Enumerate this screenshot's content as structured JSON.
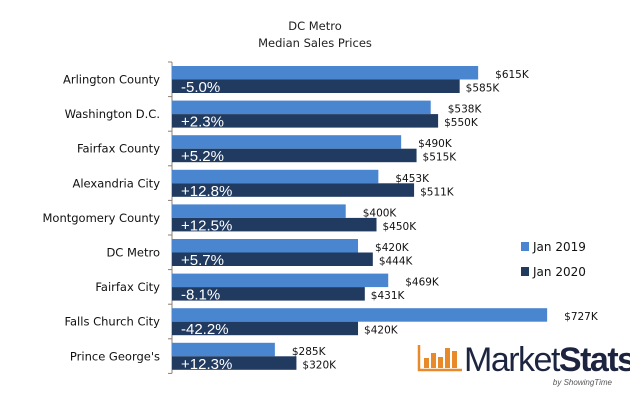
{
  "chart_data": {
    "type": "bar",
    "orientation": "horizontal",
    "title": "DC Metro",
    "subtitle": "Median Sales Prices",
    "xlabel": "",
    "ylabel": "",
    "grid": false,
    "xlim": [
      118,
      760
    ],
    "categories": [
      "Arlington County",
      "Washington D.C.",
      "Fairfax County",
      "Alexandria City",
      "Montgomery County",
      "DC Metro",
      "Fairfax City",
      "Falls Church City",
      "Prince George's"
    ],
    "series": [
      {
        "name": "Jan 2019",
        "color": "#4a86cf",
        "values": [
          615,
          538,
          490,
          453,
          400,
          420,
          469,
          727,
          285
        ],
        "labels": [
          "$615K",
          "$538K",
          "$490K",
          "$453K",
          "$400K",
          "$420K",
          "$469K",
          "$727K",
          "$285K"
        ]
      },
      {
        "name": "Jan 2020",
        "color": "#203a60",
        "values": [
          585,
          550,
          515,
          511,
          450,
          444,
          431,
          420,
          320
        ],
        "labels": [
          "$585K",
          "$550K",
          "$515K",
          "$511K",
          "$450K",
          "$444K",
          "$431K",
          "$420K",
          "$320K"
        ]
      }
    ],
    "annotations": [
      "-5.0%",
      "+2.3%",
      "+5.2%",
      "+12.8%",
      "+12.5%",
      "+5.7%",
      "-8.1%",
      "-42.2%",
      "+12.3%"
    ],
    "legend": {
      "position": "right",
      "entries": [
        "Jan 2019",
        "Jan 2020"
      ]
    }
  },
  "logo": {
    "main_light": "Market",
    "main_bold": "Stats",
    "sub": "by ShowingTime",
    "color": "#e88a2a"
  }
}
